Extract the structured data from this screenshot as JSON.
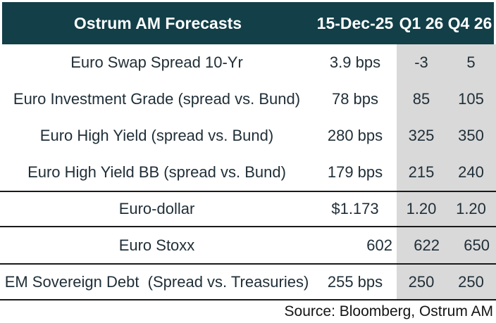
{
  "chart_data": {
    "type": "table",
    "title": "Ostrum AM Forecasts",
    "columns": [
      "Ostrum AM Forecasts",
      "15-Dec-25",
      "Q1 26",
      "Q4 26"
    ],
    "rows": [
      [
        "Euro Swap Spread 10-Yr",
        "3.9 bps",
        "-3",
        "5"
      ],
      [
        "Euro Investment Grade (spread vs. Bund)",
        "78 bps",
        "85",
        "105"
      ],
      [
        "Euro High Yield (spread vs. Bund)",
        "280 bps",
        "325",
        "350"
      ],
      [
        "Euro High Yield BB (spread vs. Bund)",
        "179 bps",
        "215",
        "240"
      ],
      [
        "Euro-dollar",
        "$1.173",
        "1.20",
        "1.20"
      ],
      [
        "Euro Stoxx",
        "602",
        "622",
        "650"
      ],
      [
        "EM Sovereign Debt  (Spread vs. Treasuries)",
        "255 bps",
        "250",
        "250"
      ]
    ],
    "source": "Source: Bloomberg, Ostrum AM",
    "layout_hints": {
      "forecast_columns_shaded": [
        "Q1 26",
        "Q4 26"
      ],
      "divider_lines_before_rows": [
        "Euro-dollar",
        "Euro Stoxx",
        "EM Sovereign Debt  (Spread vs. Treasuries)"
      ]
    }
  },
  "header": {
    "title": "Ostrum AM Forecasts",
    "date_label": "15-Dec-25",
    "q1_label": "Q1 26",
    "q4_label": "Q4 26"
  },
  "rows": [
    {
      "label": "Euro Swap Spread 10-Yr",
      "current": "3.9 bps",
      "q1": "-3",
      "q4": "5"
    },
    {
      "label": "Euro Investment Grade (spread vs. Bund)",
      "current": "78 bps",
      "q1": "85",
      "q4": "105"
    },
    {
      "label": "Euro High Yield (spread vs. Bund)",
      "current": "280 bps",
      "q1": "325",
      "q4": "350"
    },
    {
      "label": "Euro High Yield BB (spread vs. Bund)",
      "current": "179 bps",
      "q1": "215",
      "q4": "240"
    },
    {
      "label": "Euro-dollar",
      "current": "$1.173",
      "q1": "1.20",
      "q4": "1.20"
    },
    {
      "label": "Euro Stoxx",
      "current": "602",
      "q1": "622",
      "q4": "650"
    },
    {
      "label": "EM Sovereign Debt  (Spread vs. Treasuries)",
      "current": "255 bps",
      "q1": "250",
      "q4": "250"
    }
  ],
  "source_note": "Source: Bloomberg, Ostrum AM",
  "colors": {
    "header_bg": "#123f48",
    "header_text": "#ffffff",
    "forecast_column_bg": "#d9d9d9",
    "body_text": "#1f2e37",
    "divider_line": "#1a1a1a"
  }
}
